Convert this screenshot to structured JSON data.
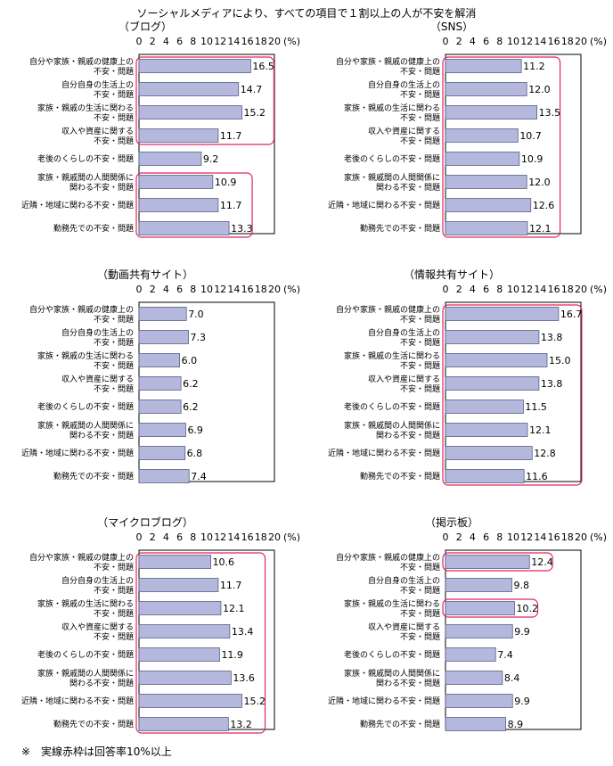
{
  "title": "ソーシャルメディアにより、すべての項目で１割以上の人が不安を解消",
  "footnote": "※　実線赤枠は回答率10%以上",
  "unit": "(%)",
  "colors": {
    "bar": "#b4b8dc",
    "bar_border": "#5a5f84",
    "highlight": "#e0245e",
    "frame": "#000000"
  },
  "chart_data": [
    {
      "type": "bar",
      "title": "（ブログ）",
      "categories": [
        [
          "自分や家族・親戚の健康上の",
          "不安・問題"
        ],
        [
          "自分自身の生活上の",
          "不安・問題"
        ],
        [
          "家族・親戚の生活に関わる",
          "不安・問題"
        ],
        [
          "収入や資産に関する",
          "不安・問題"
        ],
        [
          "老後のくらしの不安・問題"
        ],
        [
          "家族・親戚間の人間関係に",
          "関わる不安・問題"
        ],
        [
          "近隣・地域に関わる不安・問題"
        ],
        [
          "勤務先での不安・問題"
        ]
      ],
      "values": [
        16.5,
        14.7,
        15.2,
        11.7,
        9.2,
        10.9,
        11.7,
        13.3
      ],
      "xlim": [
        0,
        20
      ],
      "ticks": [
        "0",
        "2",
        "4",
        "6",
        "8",
        "10",
        "12",
        "14",
        "16",
        "18",
        "20"
      ],
      "highlight_groups": [
        [
          0,
          3
        ],
        [
          5,
          7
        ]
      ]
    },
    {
      "type": "bar",
      "title": "（SNS）",
      "categories": [
        [
          "自分や家族・親戚の健康上の",
          "不安・問題"
        ],
        [
          "自分自身の生活上の",
          "不安・問題"
        ],
        [
          "家族・親戚の生活に関わる",
          "不安・問題"
        ],
        [
          "収入や資産に関する",
          "不安・問題"
        ],
        [
          "老後のくらしの不安・問題"
        ],
        [
          "家族・親戚間の人間関係に",
          "関わる不安・問題"
        ],
        [
          "近隣・地域に関わる不安・問題"
        ],
        [
          "勤務先での不安・問題"
        ]
      ],
      "values": [
        11.2,
        12.0,
        13.5,
        10.7,
        10.9,
        12.0,
        12.6,
        12.1
      ],
      "xlim": [
        0,
        20
      ],
      "ticks": [
        "0",
        "2",
        "4",
        "6",
        "8",
        "10",
        "12",
        "14",
        "16",
        "18",
        "20"
      ],
      "highlight_groups": [
        [
          0,
          7
        ]
      ]
    },
    {
      "type": "bar",
      "title": "（動画共有サイト）",
      "categories": [
        [
          "自分や家族・親戚の健康上の",
          "不安・問題"
        ],
        [
          "自分自身の生活上の",
          "不安・問題"
        ],
        [
          "家族・親戚の生活に関わる",
          "不安・問題"
        ],
        [
          "収入や資産に関する",
          "不安・問題"
        ],
        [
          "老後のくらしの不安・問題"
        ],
        [
          "家族・親戚間の人間関係に",
          "関わる不安・問題"
        ],
        [
          "近隣・地域に関わる不安・問題"
        ],
        [
          "勤務先での不安・問題"
        ]
      ],
      "values": [
        7.0,
        7.3,
        6.0,
        6.2,
        6.2,
        6.9,
        6.8,
        7.4
      ],
      "xlim": [
        0,
        20
      ],
      "ticks": [
        "0",
        "2",
        "4",
        "6",
        "8",
        "10",
        "12",
        "14",
        "16",
        "18",
        "20"
      ],
      "highlight_groups": []
    },
    {
      "type": "bar",
      "title": "（情報共有サイト）",
      "categories": [
        [
          "自分や家族・親戚の健康上の",
          "不安・問題"
        ],
        [
          "自分自身の生活上の",
          "不安・問題"
        ],
        [
          "家族・親戚の生活に関わる",
          "不安・問題"
        ],
        [
          "収入や資産に関する",
          "不安・問題"
        ],
        [
          "老後のくらしの不安・問題"
        ],
        [
          "家族・親戚間の人間関係に",
          "関わる不安・問題"
        ],
        [
          "近隣・地域に関わる不安・問題"
        ],
        [
          "勤務先での不安・問題"
        ]
      ],
      "values": [
        16.7,
        13.8,
        15.0,
        13.8,
        11.5,
        12.1,
        12.8,
        11.6
      ],
      "xlim": [
        0,
        20
      ],
      "ticks": [
        "0",
        "2",
        "4",
        "6",
        "8",
        "10",
        "12",
        "14",
        "16",
        "18",
        "20"
      ],
      "highlight_groups": [
        [
          0,
          7
        ]
      ]
    },
    {
      "type": "bar",
      "title": "（マイクロブログ）",
      "categories": [
        [
          "自分や家族・親戚の健康上の",
          "不安・問題"
        ],
        [
          "自分自身の生活上の",
          "不安・問題"
        ],
        [
          "家族・親戚の生活に関わる",
          "不安・問題"
        ],
        [
          "収入や資産に関する",
          "不安・問題"
        ],
        [
          "老後のくらしの不安・問題"
        ],
        [
          "家族・親戚間の人間関係に",
          "関わる不安・問題"
        ],
        [
          "近隣・地域に関わる不安・問題"
        ],
        [
          "勤務先での不安・問題"
        ]
      ],
      "values": [
        10.6,
        11.7,
        12.1,
        13.4,
        11.9,
        13.6,
        15.2,
        13.2
      ],
      "xlim": [
        0,
        20
      ],
      "ticks": [
        "0",
        "2",
        "4",
        "6",
        "8",
        "10",
        "12",
        "14",
        "16",
        "18",
        "20"
      ],
      "highlight_groups": [
        [
          0,
          7
        ]
      ]
    },
    {
      "type": "bar",
      "title": "（掲示板）",
      "categories": [
        [
          "自分や家族・親戚の健康上の",
          "不安・問題"
        ],
        [
          "自分自身の生活上の",
          "不安・問題"
        ],
        [
          "家族・親戚の生活に関わる",
          "不安・問題"
        ],
        [
          "収入や資産に関する",
          "不安・問題"
        ],
        [
          "老後のくらしの不安・問題"
        ],
        [
          "家族・親戚間の人間関係に",
          "関わる不安・問題"
        ],
        [
          "近隣・地域に関わる不安・問題"
        ],
        [
          "勤務先での不安・問題"
        ]
      ],
      "values": [
        12.4,
        9.8,
        10.2,
        9.9,
        7.4,
        8.4,
        9.9,
        8.9
      ],
      "xlim": [
        0,
        20
      ],
      "ticks": [
        "0",
        "2",
        "4",
        "6",
        "8",
        "10",
        "12",
        "14",
        "16",
        "18",
        "20"
      ],
      "highlight_groups": [
        [
          0,
          0
        ],
        [
          2,
          2
        ]
      ]
    }
  ]
}
